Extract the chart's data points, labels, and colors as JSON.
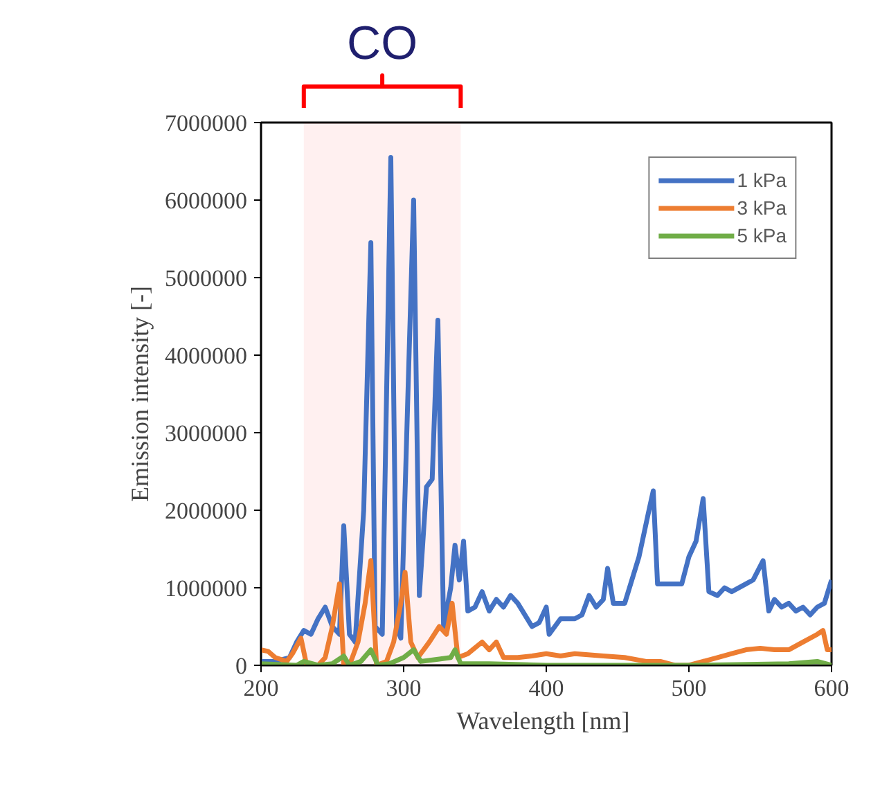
{
  "chart_data": {
    "type": "line",
    "xlabel": "Wavelength  [nm]",
    "ylabel": "Emission intensity [-]",
    "xlim": [
      200,
      600
    ],
    "ylim": [
      0,
      7000000
    ],
    "xticks": [
      200,
      300,
      400,
      500,
      600
    ],
    "yticks": [
      0,
      1000000,
      2000000,
      3000000,
      4000000,
      5000000,
      6000000,
      7000000
    ],
    "grid": false,
    "legend": "top right",
    "marker": "none",
    "line_style": "solid",
    "bands": [
      {
        "axis": "x",
        "from": 230,
        "to": 340,
        "label": "CO",
        "color": "#ff0000"
      }
    ],
    "series": [
      {
        "name": "1 kPa",
        "color": "#4472c4",
        "x": [
          200,
          210,
          220,
          225,
          230,
          235,
          240,
          245,
          250,
          255,
          258,
          262,
          266,
          272,
          277,
          280,
          285,
          291,
          295,
          298,
          303,
          307,
          311,
          316,
          320,
          324,
          328,
          333,
          336,
          339,
          342,
          345,
          350,
          355,
          360,
          365,
          370,
          375,
          380,
          385,
          390,
          395,
          400,
          402,
          410,
          420,
          425,
          430,
          435,
          440,
          443,
          447,
          455,
          465,
          472,
          475,
          478,
          485,
          495,
          500,
          505,
          510,
          514,
          520,
          525,
          530,
          540,
          545,
          552,
          556,
          560,
          565,
          570,
          575,
          580,
          585,
          590,
          595,
          600
        ],
        "values": [
          50000,
          50000,
          100000,
          300000,
          450000,
          400000,
          600000,
          750000,
          500000,
          400000,
          1800000,
          400000,
          300000,
          2000000,
          5450000,
          500000,
          400000,
          6550000,
          500000,
          350000,
          3500000,
          6000000,
          900000,
          2300000,
          2400000,
          4450000,
          500000,
          1000000,
          1550000,
          1100000,
          1600000,
          700000,
          750000,
          950000,
          700000,
          850000,
          750000,
          900000,
          800000,
          650000,
          500000,
          550000,
          750000,
          400000,
          600000,
          600000,
          650000,
          900000,
          750000,
          850000,
          1250000,
          800000,
          800000,
          1400000,
          2000000,
          2250000,
          1050000,
          1050000,
          1050000,
          1400000,
          1600000,
          2150000,
          950000,
          900000,
          1000000,
          950000,
          1050000,
          1100000,
          1350000,
          700000,
          850000,
          750000,
          800000,
          700000,
          750000,
          650000,
          750000,
          800000,
          1100000
        ]
      },
      {
        "name": "3 kPa",
        "color": "#ed7d31",
        "x": [
          200,
          205,
          210,
          218,
          222,
          228,
          232,
          240,
          245,
          250,
          255,
          258,
          262,
          268,
          273,
          277,
          281,
          288,
          293,
          298,
          301,
          305,
          310,
          318,
          325,
          330,
          334,
          338,
          345,
          355,
          360,
          365,
          370,
          380,
          390,
          400,
          410,
          420,
          440,
          455,
          470,
          480,
          490,
          500,
          510,
          520,
          530,
          540,
          550,
          560,
          570,
          580,
          590,
          594,
          597,
          600
        ],
        "values": [
          200000,
          180000,
          100000,
          50000,
          150000,
          350000,
          0,
          0,
          100000,
          500000,
          1050000,
          0,
          0,
          300000,
          800000,
          1350000,
          0,
          50000,
          300000,
          800000,
          1200000,
          300000,
          100000,
          300000,
          500000,
          400000,
          800000,
          100000,
          150000,
          300000,
          200000,
          300000,
          100000,
          100000,
          120000,
          150000,
          120000,
          150000,
          120000,
          100000,
          50000,
          50000,
          0,
          0,
          50000,
          100000,
          150000,
          200000,
          220000,
          200000,
          200000,
          300000,
          400000,
          450000,
          200000,
          200000
        ]
      },
      {
        "name": "5 kPa",
        "color": "#70ad47",
        "x": [
          200,
          225,
          230,
          240,
          250,
          258,
          262,
          270,
          277,
          282,
          290,
          300,
          307,
          312,
          325,
          333,
          336,
          340,
          360,
          400,
          500,
          570,
          590,
          600
        ],
        "values": [
          20000,
          0,
          50000,
          0,
          20000,
          120000,
          0,
          50000,
          200000,
          0,
          20000,
          100000,
          200000,
          50000,
          80000,
          100000,
          200000,
          20000,
          20000,
          0,
          0,
          20000,
          50000,
          0
        ]
      }
    ]
  }
}
